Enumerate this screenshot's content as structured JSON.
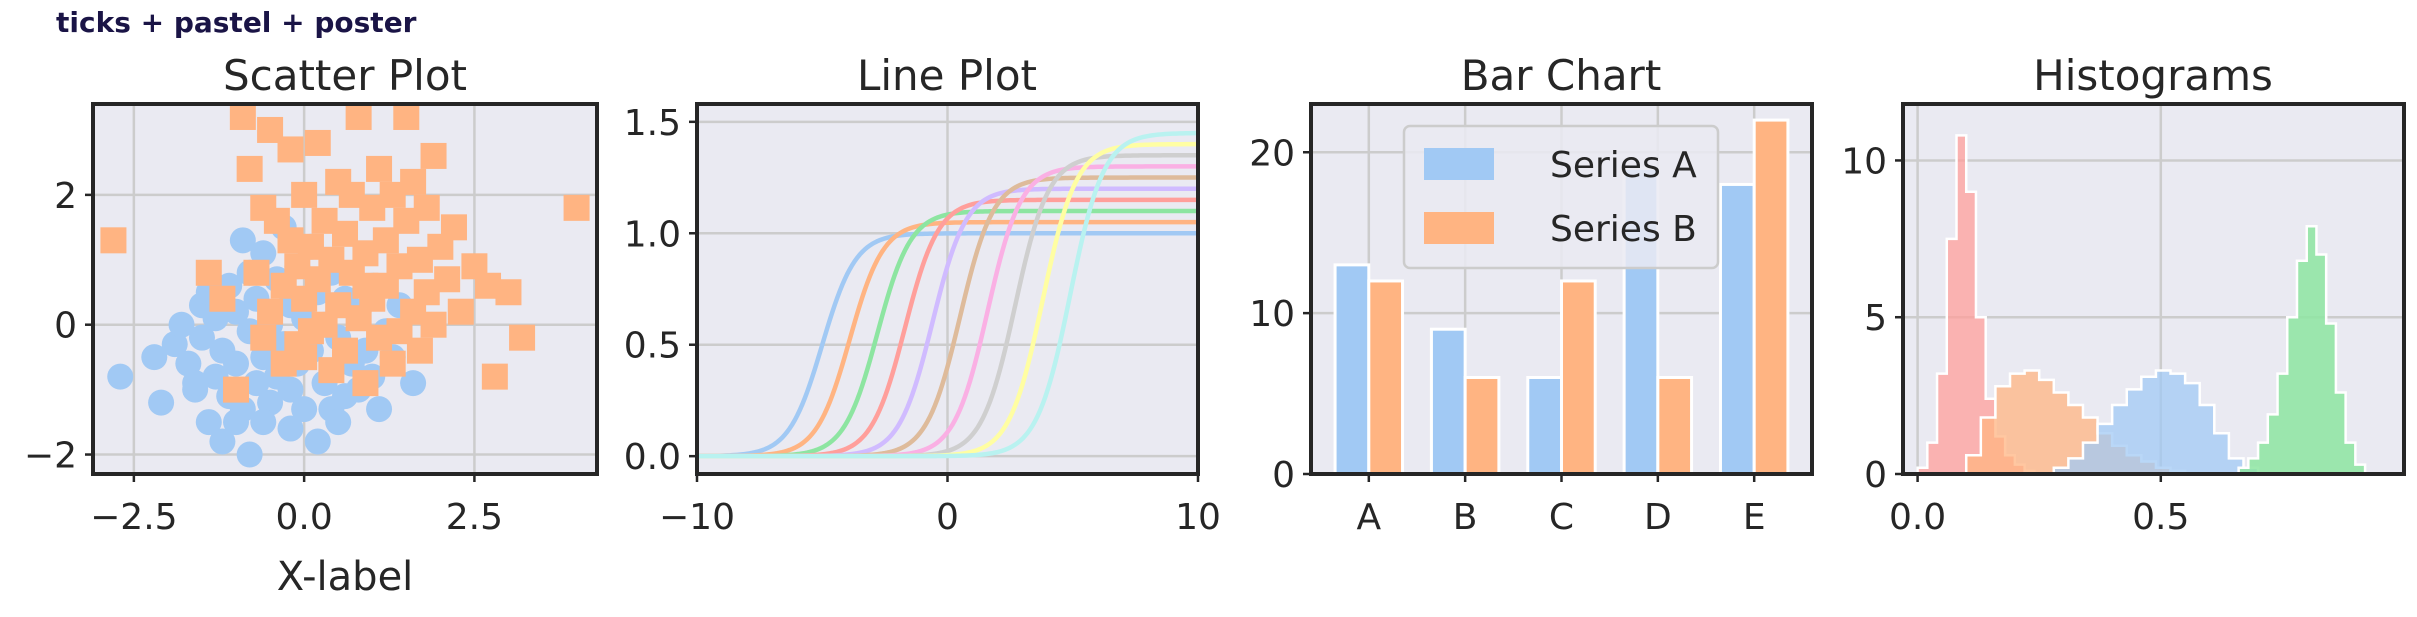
{
  "figure_title": "ticks + pastel + poster",
  "colors": {
    "blue": "#a1c9f4",
    "orange": "#ffb482",
    "green": "#8de5a1",
    "red": "#ff9f9b",
    "purple": "#d0bbff",
    "brown": "#debb9b",
    "pink": "#fab0e4",
    "gray": "#cfcfcf",
    "yellow": "#fffea3",
    "cyan": "#b9f2f0",
    "panel_bg": "#eaeaf2",
    "grid": "#cccccc",
    "spine": "#262626"
  },
  "chart_data": [
    {
      "type": "scatter",
      "title": "Scatter Plot",
      "xlabel": "X-label",
      "ylabel": "",
      "xlim": [
        -3.1,
        4.3
      ],
      "ylim": [
        -2.3,
        3.4
      ],
      "xticks": [
        -2.5,
        0.0,
        2.5
      ],
      "xtick_labels": [
        "−2.5",
        "0.0",
        "2.5"
      ],
      "yticks": [
        -2,
        0,
        2
      ],
      "ytick_labels": [
        "−2",
        "0",
        "2"
      ],
      "series": [
        {
          "marker": "circle",
          "color": "blue",
          "points": [
            [
              -2.7,
              -0.8
            ],
            [
              -2.2,
              -0.5
            ],
            [
              -2.1,
              -1.2
            ],
            [
              -1.9,
              -0.3
            ],
            [
              -1.8,
              0
            ],
            [
              -1.7,
              -0.6
            ],
            [
              -1.6,
              -1.0
            ],
            [
              -1.5,
              0.3
            ],
            [
              -1.5,
              -0.2
            ],
            [
              -1.4,
              -1.5
            ],
            [
              -1.4,
              0.5
            ],
            [
              -1.3,
              -0.8
            ],
            [
              -1.3,
              0.1
            ],
            [
              -1.2,
              -0.4
            ],
            [
              -1.2,
              -1.8
            ],
            [
              -1.1,
              0.6
            ],
            [
              -1.1,
              -1.1
            ],
            [
              -1.0,
              0.2
            ],
            [
              -1.0,
              -0.6
            ],
            [
              -0.9,
              -1.3
            ],
            [
              -0.9,
              1.3
            ],
            [
              -0.8,
              0.8
            ],
            [
              -0.8,
              -0.1
            ],
            [
              -0.8,
              -2.0
            ],
            [
              -0.7,
              -0.9
            ],
            [
              -0.7,
              0.4
            ],
            [
              -0.6,
              1.1
            ],
            [
              -0.6,
              -0.5
            ],
            [
              -0.5,
              -1.2
            ],
            [
              -0.5,
              0.0
            ],
            [
              -0.4,
              0.7
            ],
            [
              -0.4,
              -0.8
            ],
            [
              -0.3,
              -0.3
            ],
            [
              -0.3,
              1.5
            ],
            [
              -0.2,
              -1.0
            ],
            [
              -0.2,
              0.3
            ],
            [
              -0.1,
              -0.6
            ],
            [
              -0.1,
              0.9
            ],
            [
              0.0,
              -1.3
            ],
            [
              0.0,
              0.1
            ],
            [
              0.1,
              -0.4
            ],
            [
              0.1,
              1.2
            ],
            [
              0.2,
              -1.8
            ],
            [
              0.2,
              0.5
            ],
            [
              0.3,
              -0.9
            ],
            [
              0.3,
              0.0
            ],
            [
              0.4,
              -1.3
            ],
            [
              0.4,
              0.8
            ],
            [
              0.5,
              -0.2
            ],
            [
              0.6,
              -1.1
            ],
            [
              0.6,
              0.4
            ],
            [
              0.7,
              -0.6
            ],
            [
              0.8,
              -1.0
            ],
            [
              0.8,
              0.2
            ],
            [
              0.9,
              -0.4
            ],
            [
              1.0,
              -0.8
            ],
            [
              1.0,
              0.6
            ],
            [
              1.1,
              -1.3
            ],
            [
              1.2,
              -0.1
            ],
            [
              1.3,
              -0.5
            ],
            [
              1.4,
              0.3
            ],
            [
              1.6,
              -0.9
            ],
            [
              -1.6,
              -0.9
            ],
            [
              -0.6,
              -1.5
            ],
            [
              0.5,
              -1.5
            ],
            [
              -1.0,
              -1.5
            ],
            [
              -0.2,
              -1.6
            ]
          ]
        },
        {
          "marker": "square",
          "color": "orange",
          "points": [
            [
              -2.8,
              1.3
            ],
            [
              -1.4,
              0.8
            ],
            [
              -1.2,
              0.4
            ],
            [
              -1.0,
              -1.0
            ],
            [
              -0.9,
              3.2
            ],
            [
              -0.8,
              2.4
            ],
            [
              -0.7,
              0.8
            ],
            [
              -0.6,
              1.8
            ],
            [
              -0.5,
              0.2
            ],
            [
              -0.5,
              3.0
            ],
            [
              -0.4,
              1.6
            ],
            [
              -0.3,
              0.6
            ],
            [
              -0.3,
              -0.6
            ],
            [
              -0.2,
              1.3
            ],
            [
              -0.2,
              2.7
            ],
            [
              -0.1,
              0.9
            ],
            [
              -0.1,
              -0.3
            ],
            [
              0.0,
              2.0
            ],
            [
              0.0,
              0.4
            ],
            [
              0.1,
              1.2
            ],
            [
              0.1,
              -0.1
            ],
            [
              0.2,
              2.8
            ],
            [
              0.2,
              0.7
            ],
            [
              0.3,
              1.6
            ],
            [
              0.3,
              0.0
            ],
            [
              0.4,
              -0.7
            ],
            [
              0.4,
              1.0
            ],
            [
              0.5,
              2.2
            ],
            [
              0.5,
              0.3
            ],
            [
              0.6,
              1.4
            ],
            [
              0.6,
              -0.4
            ],
            [
              0.7,
              0.8
            ],
            [
              0.7,
              2.0
            ],
            [
              0.8,
              0.1
            ],
            [
              0.8,
              3.2
            ],
            [
              0.9,
              1.1
            ],
            [
              0.9,
              -0.9
            ],
            [
              1.0,
              1.8
            ],
            [
              1.0,
              0.4
            ],
            [
              1.1,
              2.4
            ],
            [
              1.1,
              -0.2
            ],
            [
              1.2,
              1.3
            ],
            [
              1.2,
              0.6
            ],
            [
              1.3,
              2.0
            ],
            [
              1.3,
              -0.6
            ],
            [
              1.4,
              0.9
            ],
            [
              1.5,
              1.6
            ],
            [
              1.5,
              3.2
            ],
            [
              1.6,
              0.2
            ],
            [
              1.6,
              2.2
            ],
            [
              1.7,
              1.0
            ],
            [
              1.7,
              -0.4
            ],
            [
              1.8,
              1.8
            ],
            [
              1.8,
              0.5
            ],
            [
              1.9,
              2.6
            ],
            [
              1.9,
              0.0
            ],
            [
              2.0,
              1.2
            ],
            [
              2.1,
              0.7
            ],
            [
              2.2,
              1.5
            ],
            [
              2.3,
              0.2
            ],
            [
              2.5,
              0.9
            ],
            [
              2.7,
              0.6
            ],
            [
              2.8,
              -0.8
            ],
            [
              3.0,
              0.5
            ],
            [
              3.2,
              -0.2
            ],
            [
              4.0,
              1.8
            ],
            [
              -0.6,
              -0.2
            ],
            [
              0.0,
              -0.5
            ],
            [
              0.9,
              0.6
            ],
            [
              1.4,
              -0.1
            ]
          ]
        }
      ]
    },
    {
      "type": "line",
      "title": "Line Plot",
      "xlabel": "",
      "ylabel": "",
      "xlim": [
        -10,
        10
      ],
      "ylim": [
        -0.08,
        1.58
      ],
      "xticks": [
        -10,
        0,
        10
      ],
      "xtick_labels": [
        "−10",
        "0",
        "10"
      ],
      "yticks": [
        0.0,
        0.5,
        1.0,
        1.5
      ],
      "ytick_labels": [
        "0.0",
        "0.5",
        "1.0",
        "1.5"
      ],
      "series": [
        {
          "color": "blue",
          "shift": -5.0,
          "top": 1.0
        },
        {
          "color": "orange",
          "shift": -3.9,
          "top": 1.05
        },
        {
          "color": "green",
          "shift": -2.8,
          "top": 1.1
        },
        {
          "color": "red",
          "shift": -1.7,
          "top": 1.15
        },
        {
          "color": "purple",
          "shift": -0.6,
          "top": 1.2
        },
        {
          "color": "brown",
          "shift": 0.5,
          "top": 1.25
        },
        {
          "color": "pink",
          "shift": 1.6,
          "top": 1.3
        },
        {
          "color": "gray",
          "shift": 2.7,
          "top": 1.35
        },
        {
          "color": "yellow",
          "shift": 3.8,
          "top": 1.4
        },
        {
          "color": "cyan",
          "shift": 4.9,
          "top": 1.45
        }
      ]
    },
    {
      "type": "bar",
      "title": "Bar Chart",
      "xlabel": "",
      "ylabel": "",
      "categories": [
        "A",
        "B",
        "C",
        "D",
        "E"
      ],
      "ylim": [
        0,
        23
      ],
      "yticks": [
        0,
        10,
        20
      ],
      "ytick_labels": [
        "0",
        "10",
        "20"
      ],
      "legend_position": "top-center",
      "series": [
        {
          "name": "Series A",
          "color": "blue",
          "values": [
            13,
            9,
            6,
            19,
            18
          ]
        },
        {
          "name": "Series B",
          "color": "orange",
          "values": [
            12,
            6,
            12,
            6,
            22
          ]
        }
      ]
    },
    {
      "type": "histogram",
      "title": "Histograms",
      "xlabel": "",
      "ylabel": "",
      "xlim": [
        -0.03,
        1.0
      ],
      "ylim": [
        0,
        11.8
      ],
      "xticks": [
        0.0,
        0.5
      ],
      "xtick_labels": [
        "0.0",
        "0.5"
      ],
      "yticks": [
        0,
        5,
        10
      ],
      "ytick_labels": [
        "0",
        "5",
        "10"
      ],
      "series": [
        {
          "color": "red",
          "alpha": 0.75,
          "bins": [
            [
              0.0,
              0.02,
              0.2
            ],
            [
              0.02,
              0.04,
              1.0
            ],
            [
              0.04,
              0.06,
              3.2
            ],
            [
              0.06,
              0.08,
              7.5
            ],
            [
              0.08,
              0.1,
              10.8
            ],
            [
              0.1,
              0.12,
              9.0
            ],
            [
              0.12,
              0.14,
              5.0
            ],
            [
              0.14,
              0.16,
              2.4
            ],
            [
              0.16,
              0.18,
              1.2
            ],
            [
              0.18,
              0.2,
              0.6
            ],
            [
              0.2,
              0.22,
              0.3
            ],
            [
              0.22,
              0.24,
              0.1
            ]
          ]
        },
        {
          "color": "orange",
          "alpha": 0.75,
          "bins": [
            [
              0.1,
              0.13,
              0.6
            ],
            [
              0.13,
              0.16,
              1.8
            ],
            [
              0.16,
              0.19,
              2.8
            ],
            [
              0.19,
              0.22,
              3.2
            ],
            [
              0.22,
              0.25,
              3.3
            ],
            [
              0.25,
              0.28,
              3.0
            ],
            [
              0.28,
              0.31,
              2.6
            ],
            [
              0.31,
              0.34,
              2.2
            ],
            [
              0.34,
              0.37,
              1.8
            ],
            [
              0.37,
              0.4,
              1.3
            ],
            [
              0.4,
              0.43,
              0.9
            ],
            [
              0.43,
              0.46,
              0.6
            ],
            [
              0.46,
              0.49,
              0.4
            ],
            [
              0.49,
              0.52,
              0.2
            ],
            [
              0.52,
              0.55,
              0.1
            ]
          ]
        },
        {
          "color": "blue",
          "alpha": 0.75,
          "bins": [
            [
              0.28,
              0.31,
              0.2
            ],
            [
              0.31,
              0.34,
              0.5
            ],
            [
              0.34,
              0.37,
              1.0
            ],
            [
              0.37,
              0.4,
              1.6
            ],
            [
              0.4,
              0.43,
              2.2
            ],
            [
              0.43,
              0.46,
              2.7
            ],
            [
              0.46,
              0.49,
              3.1
            ],
            [
              0.49,
              0.52,
              3.3
            ],
            [
              0.52,
              0.55,
              3.2
            ],
            [
              0.55,
              0.58,
              2.9
            ],
            [
              0.58,
              0.61,
              2.2
            ],
            [
              0.61,
              0.64,
              1.3
            ],
            [
              0.64,
              0.67,
              0.5
            ],
            [
              0.67,
              0.7,
              0.2
            ]
          ]
        },
        {
          "color": "green",
          "alpha": 0.85,
          "bins": [
            [
              0.66,
              0.68,
              0.2
            ],
            [
              0.68,
              0.7,
              0.5
            ],
            [
              0.7,
              0.72,
              1.0
            ],
            [
              0.72,
              0.74,
              1.9
            ],
            [
              0.74,
              0.76,
              3.2
            ],
            [
              0.76,
              0.78,
              5.0
            ],
            [
              0.78,
              0.8,
              6.8
            ],
            [
              0.8,
              0.82,
              7.9
            ],
            [
              0.82,
              0.84,
              7.0
            ],
            [
              0.84,
              0.86,
              4.8
            ],
            [
              0.86,
              0.88,
              2.6
            ],
            [
              0.88,
              0.9,
              1.0
            ],
            [
              0.9,
              0.92,
              0.3
            ]
          ]
        }
      ]
    }
  ]
}
